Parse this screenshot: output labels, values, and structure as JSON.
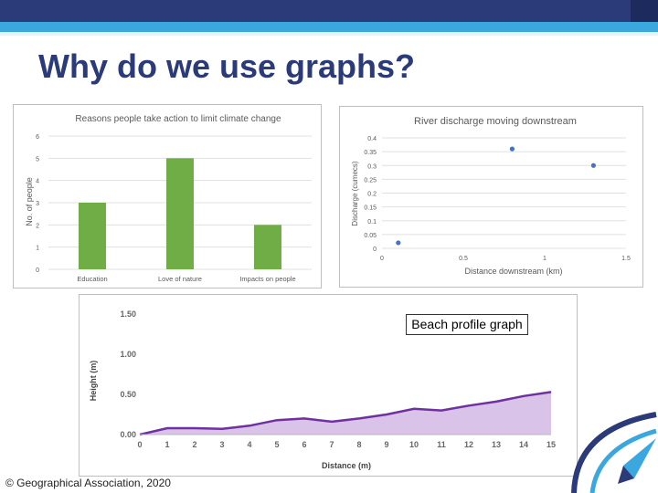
{
  "slide": {
    "title": "Why do we use graphs?",
    "copyright": "© Geographical Association, 2020",
    "caption": "Beach profile graph"
  },
  "colors": {
    "title": "#2b3a78",
    "bar": "#70ad47",
    "scatter": "#4472c4",
    "area_line": "#7030a0",
    "area_fill": "#d9c3e8"
  },
  "chart_data": [
    {
      "type": "bar",
      "title": "Reasons people take action to limit climate change",
      "categories": [
        "Education",
        "Love of nature",
        "Impacts on people"
      ],
      "values": [
        3,
        5,
        2
      ],
      "xlabel": "",
      "ylabel": "No. of people",
      "ylim": [
        0,
        6
      ],
      "yticks": [
        "0",
        "1",
        "2",
        "3",
        "4",
        "5",
        "6"
      ],
      "grid": true,
      "legend": "none"
    },
    {
      "type": "scatter",
      "title": "River discharge moving downstream",
      "x": [
        0.1,
        0.8,
        1.3
      ],
      "y": [
        0.02,
        0.36,
        0.3
      ],
      "xlabel": "Distance downstream (km)",
      "ylabel": "Discharge (cumecs)",
      "xlim": [
        0,
        1.5
      ],
      "ylim": [
        0,
        0.4
      ],
      "xticks": [
        "0",
        "0.5",
        "1",
        "1.5"
      ],
      "yticks": [
        "0",
        "0.05",
        "0.1",
        "0.15",
        "0.2",
        "0.25",
        "0.3",
        "0.35",
        "0.4"
      ],
      "grid": true,
      "legend": "none"
    },
    {
      "type": "area",
      "title": "",
      "x": [
        0,
        1,
        2,
        3,
        4,
        5,
        6,
        7,
        8,
        9,
        10,
        11,
        12,
        13,
        14,
        15
      ],
      "y": [
        0.0,
        0.08,
        0.08,
        0.07,
        0.11,
        0.18,
        0.2,
        0.16,
        0.2,
        0.25,
        0.32,
        0.3,
        0.36,
        0.41,
        0.48,
        0.53
      ],
      "xlabel": "Distance (m)",
      "ylabel": "Height (m)",
      "xlim": [
        0,
        15
      ],
      "ylim": [
        0,
        1.5
      ],
      "xticks": [
        "0",
        "1",
        "2",
        "3",
        "4",
        "5",
        "6",
        "7",
        "8",
        "9",
        "10",
        "11",
        "12",
        "13",
        "14",
        "15"
      ],
      "yticks": [
        "0.00",
        "0.50",
        "1.00",
        "1.50"
      ],
      "grid": false,
      "legend": "none"
    }
  ]
}
